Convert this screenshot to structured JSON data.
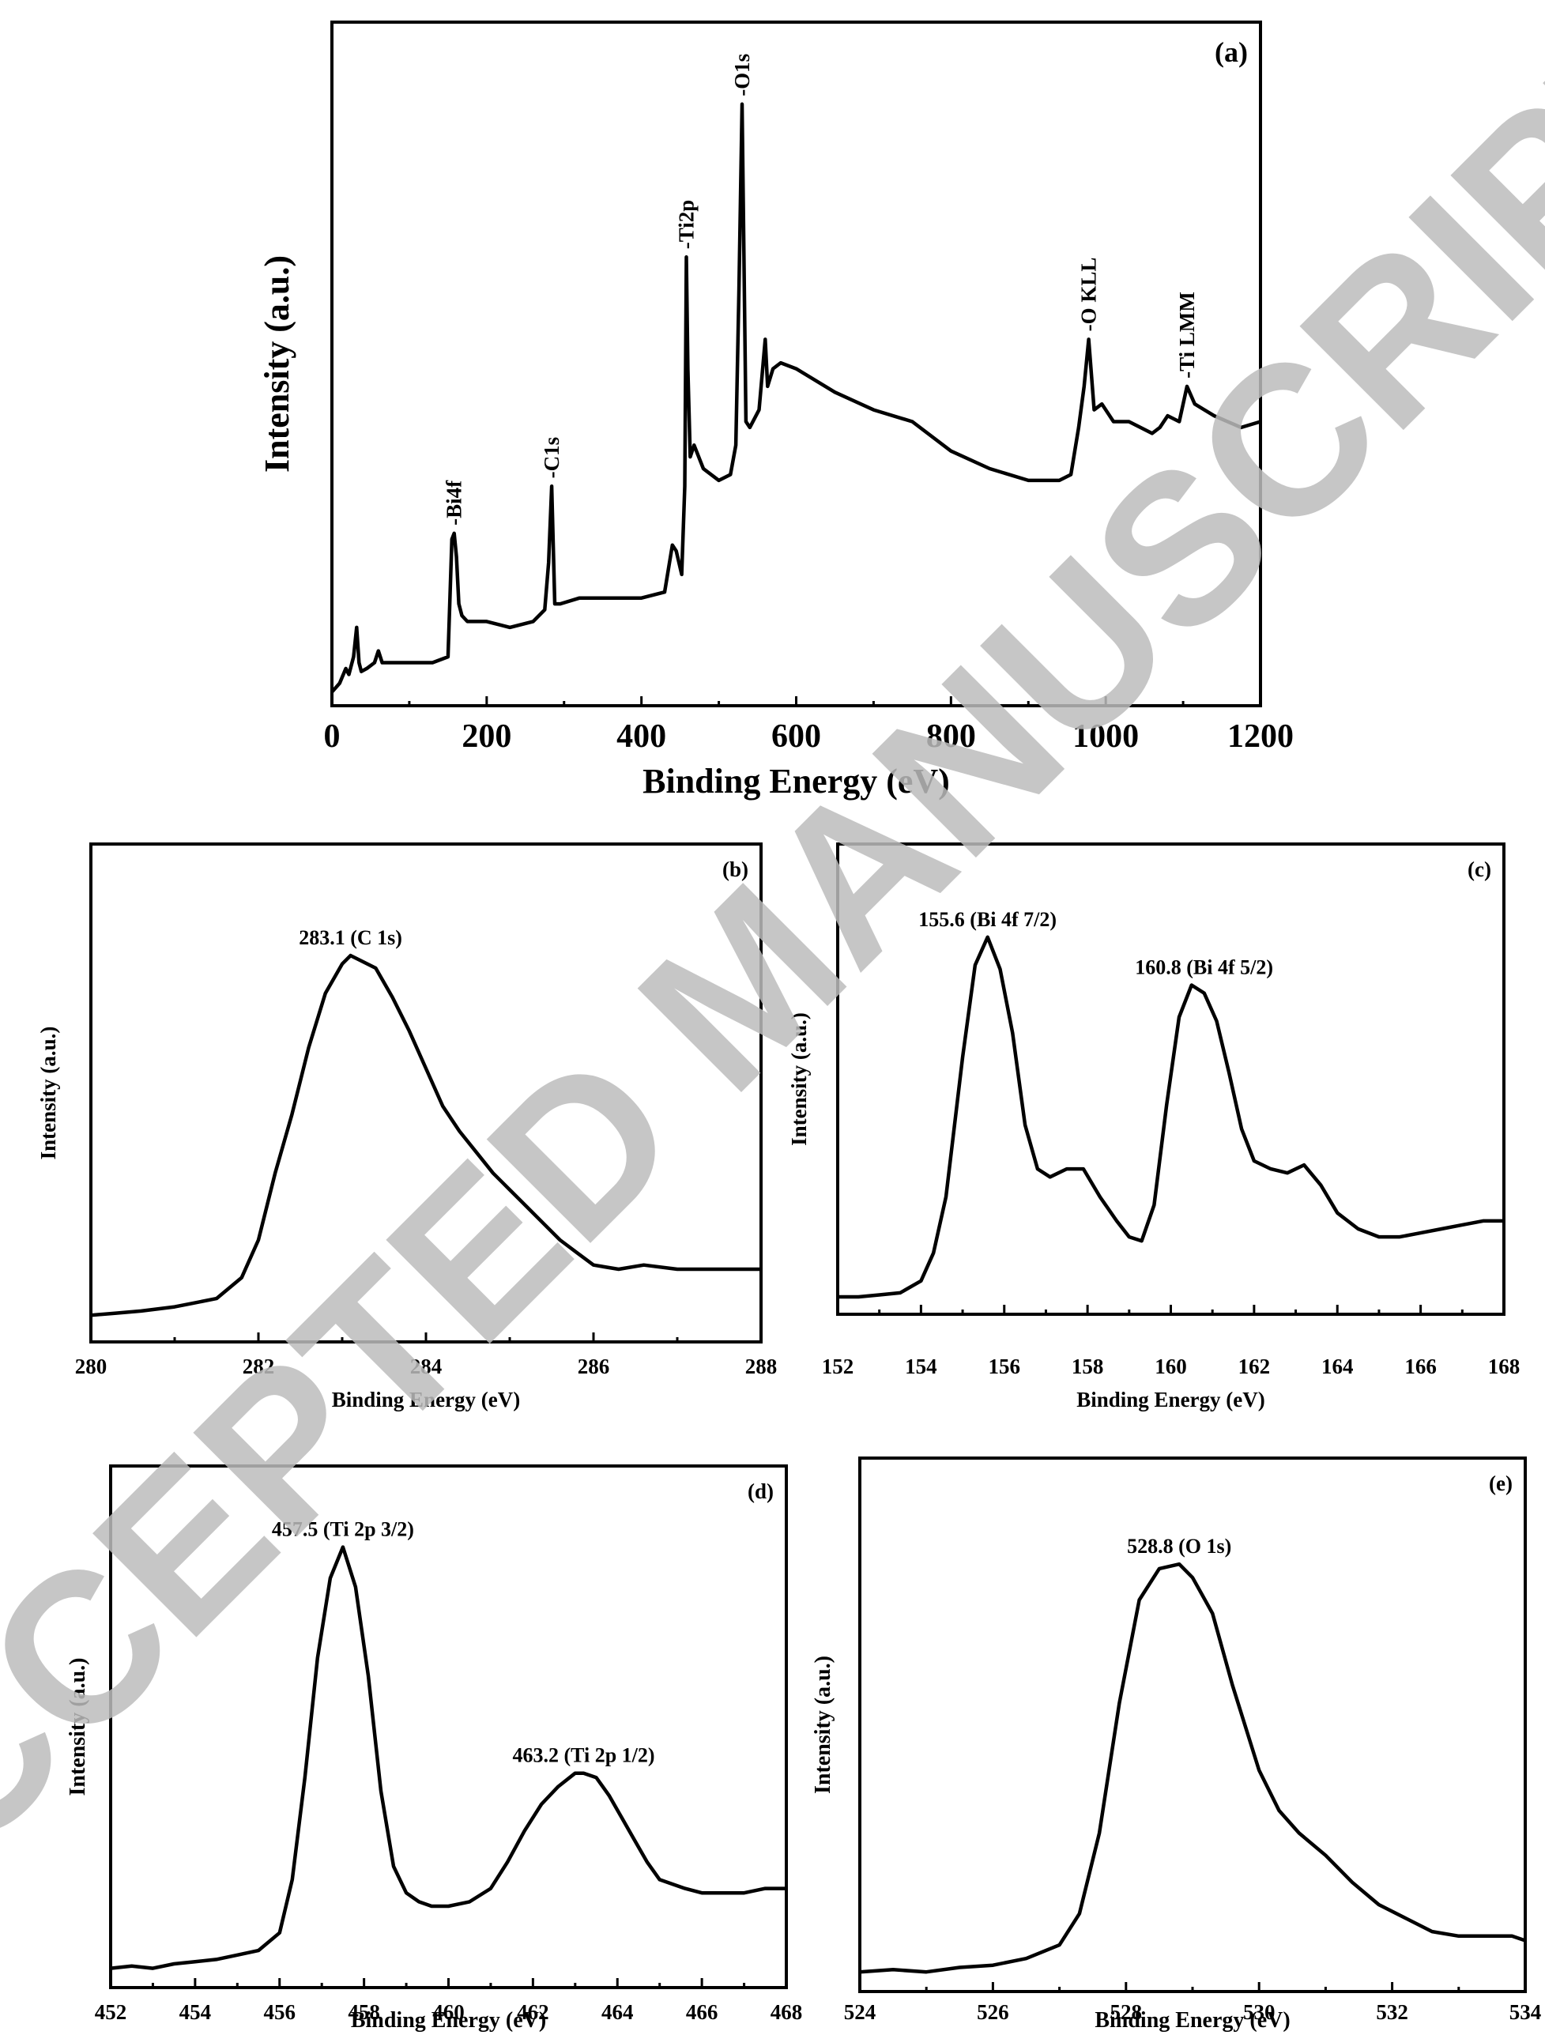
{
  "watermark": "ACCEPTED MANUSCRIPT",
  "chart_data": [
    {
      "id": "a",
      "type": "line",
      "panel_label": "(a)",
      "xlabel": "Binding Energy (eV)",
      "ylabel": "Intensity (a.u.)",
      "xlim": [
        0,
        1200
      ],
      "ylim": [
        0,
        100
      ],
      "xticks": [
        0,
        200,
        400,
        600,
        800,
        1000,
        1200
      ],
      "grid": false,
      "annotations": [
        {
          "text": "-Bi4f",
          "x": 158
        },
        {
          "text": "-C1s",
          "x": 284
        },
        {
          "text": "-Ti2p",
          "x": 458
        },
        {
          "text": "-O1s",
          "x": 530
        },
        {
          "text": "-O KLL",
          "x": 978
        },
        {
          "text": "-Ti LMM",
          "x": 1105
        }
      ],
      "x": [
        0,
        10,
        18,
        22,
        28,
        32,
        35,
        38,
        45,
        55,
        60,
        65,
        75,
        100,
        130,
        150,
        155,
        158,
        161,
        164,
        168,
        175,
        200,
        230,
        260,
        275,
        280,
        284,
        288,
        295,
        320,
        360,
        400,
        430,
        440,
        445,
        452,
        456,
        458,
        460,
        463,
        468,
        480,
        500,
        515,
        522,
        526,
        530,
        535,
        540,
        552,
        560,
        563,
        570,
        580,
        600,
        650,
        700,
        750,
        800,
        850,
        900,
        940,
        955,
        965,
        972,
        978,
        985,
        995,
        1010,
        1030,
        1060,
        1070,
        1080,
        1095,
        1105,
        1115,
        1140,
        1175,
        1200
      ],
      "y": [
        0,
        1.5,
        4,
        3,
        6,
        11,
        5,
        3.5,
        4,
        5,
        7,
        5,
        5,
        5,
        5,
        6,
        26,
        27,
        23,
        15,
        13,
        12,
        12,
        11,
        12,
        14,
        22,
        35,
        15,
        15,
        16,
        16,
        16,
        17,
        25,
        24,
        20,
        35,
        74,
        55,
        40,
        42,
        38,
        36,
        37,
        42,
        68,
        100,
        46,
        45,
        48,
        60,
        52,
        55,
        56,
        55,
        51,
        48,
        46,
        41,
        38,
        36,
        36,
        37,
        45,
        52,
        60,
        48,
        49,
        46,
        46,
        44,
        45,
        47,
        46,
        52,
        49,
        47,
        45,
        46
      ]
    },
    {
      "id": "b",
      "type": "line",
      "panel_label": "(b)",
      "xlabel": "Binding Energy (eV)",
      "ylabel": "Intensity (a.u.)",
      "xlim": [
        280,
        288
      ],
      "ylim": [
        0,
        100
      ],
      "xticks": [
        280,
        282,
        284,
        286,
        288
      ],
      "grid": false,
      "annotations": [
        {
          "text": "283.1 (C 1s)",
          "x": 283.1
        }
      ],
      "x": [
        280,
        280.3,
        280.6,
        281,
        281.5,
        281.8,
        282,
        282.2,
        282.4,
        282.6,
        282.8,
        283,
        283.1,
        283.2,
        283.4,
        283.6,
        283.8,
        284,
        284.2,
        284.4,
        284.6,
        284.8,
        285,
        285.2,
        285.4,
        285.6,
        285.8,
        286,
        286.3,
        286.6,
        287,
        287.4,
        287.7,
        288
      ],
      "y": [
        4,
        4.5,
        5,
        6,
        8,
        13,
        22,
        38,
        52,
        68,
        81,
        88,
        90,
        89,
        87,
        80,
        72,
        63,
        54,
        48,
        43,
        38,
        34,
        30,
        26,
        22,
        19,
        16,
        15,
        16,
        15,
        15,
        15,
        15
      ]
    },
    {
      "id": "c",
      "type": "line",
      "panel_label": "(c)",
      "xlabel": "Binding Energy (eV)",
      "ylabel": "Intensity (a.u.)",
      "xlim": [
        152,
        168
      ],
      "ylim": [
        0,
        100
      ],
      "xticks": [
        152,
        154,
        156,
        158,
        160,
        162,
        164,
        166,
        168
      ],
      "grid": false,
      "annotations": [
        {
          "text": "155.6 (Bi 4f 7/2)",
          "x": 155.6
        },
        {
          "text": "160.8 (Bi 4f 5/2)",
          "x": 160.8
        }
      ],
      "x": [
        152,
        152.5,
        153,
        153.5,
        154,
        154.3,
        154.6,
        155,
        155.3,
        155.6,
        155.9,
        156.2,
        156.5,
        156.8,
        157.1,
        157.5,
        157.9,
        158.3,
        158.7,
        159,
        159.3,
        159.6,
        159.9,
        160.2,
        160.5,
        160.8,
        161.1,
        161.4,
        161.7,
        162,
        162.4,
        162.8,
        163.2,
        163.6,
        164,
        164.5,
        165,
        165.5,
        166,
        166.5,
        167,
        167.5,
        168
      ],
      "y": [
        2,
        2,
        2.5,
        3,
        6,
        13,
        27,
        62,
        85,
        92,
        84,
        68,
        45,
        34,
        32,
        34,
        34,
        27,
        21,
        17,
        16,
        25,
        50,
        72,
        80,
        78,
        71,
        58,
        44,
        36,
        34,
        33,
        35,
        30,
        23,
        19,
        17,
        17,
        18,
        19,
        20,
        21,
        21
      ]
    },
    {
      "id": "d",
      "type": "line",
      "panel_label": "(d)",
      "xlabel": "Binding Energy (eV)",
      "ylabel": "Intensity (a.u.)",
      "xlim": [
        452,
        468
      ],
      "ylim": [
        0,
        100
      ],
      "xticks": [
        452,
        454,
        456,
        458,
        460,
        462,
        464,
        466,
        468
      ],
      "grid": false,
      "annotations": [
        {
          "text": "457.5 (Ti 2p 3/2)",
          "x": 457.5
        },
        {
          "text": "463.2 (Ti 2p 1/2)",
          "x": 463.2
        }
      ],
      "x": [
        452,
        452.5,
        453,
        453.5,
        454,
        454.5,
        455,
        455.5,
        456,
        456.3,
        456.6,
        456.9,
        457.2,
        457.5,
        457.8,
        458.1,
        458.4,
        458.7,
        459,
        459.3,
        459.6,
        460,
        460.5,
        461,
        461.4,
        461.8,
        462.2,
        462.6,
        463,
        463.2,
        463.5,
        463.8,
        464.1,
        464.4,
        464.7,
        465,
        465.3,
        465.6,
        466,
        466.5,
        467,
        467.5,
        468
      ],
      "y": [
        2,
        2.5,
        2,
        3,
        3.5,
        4,
        5,
        6,
        10,
        22,
        45,
        72,
        90,
        97,
        88,
        68,
        42,
        25,
        19,
        17,
        16,
        16,
        17,
        20,
        26,
        33,
        39,
        43,
        46,
        46,
        45,
        41,
        36,
        31,
        26,
        22,
        21,
        20,
        19,
        19,
        19,
        20,
        20
      ]
    },
    {
      "id": "e",
      "type": "line",
      "panel_label": "(e)",
      "xlabel": "Binding Energy (eV)",
      "ylabel": "Intensity (a.u.)",
      "xlim": [
        524,
        534
      ],
      "ylim": [
        0,
        100
      ],
      "xticks": [
        524,
        526,
        528,
        530,
        532,
        534
      ],
      "grid": false,
      "annotations": [
        {
          "text": "528.8 (O 1s)",
          "x": 528.8
        }
      ],
      "x": [
        524,
        524.5,
        525,
        525.5,
        526,
        526.5,
        527,
        527.3,
        527.6,
        527.9,
        528.2,
        528.5,
        528.8,
        529,
        529.3,
        529.6,
        530,
        530.3,
        530.6,
        531,
        531.4,
        531.8,
        532.2,
        532.6,
        533,
        533.4,
        533.8,
        534
      ],
      "y": [
        2,
        2.5,
        2,
        3,
        3.5,
        5,
        8,
        15,
        33,
        62,
        85,
        92,
        93,
        90,
        82,
        66,
        47,
        38,
        33,
        28,
        22,
        17,
        14,
        11,
        10,
        10,
        10,
        9
      ]
    }
  ]
}
